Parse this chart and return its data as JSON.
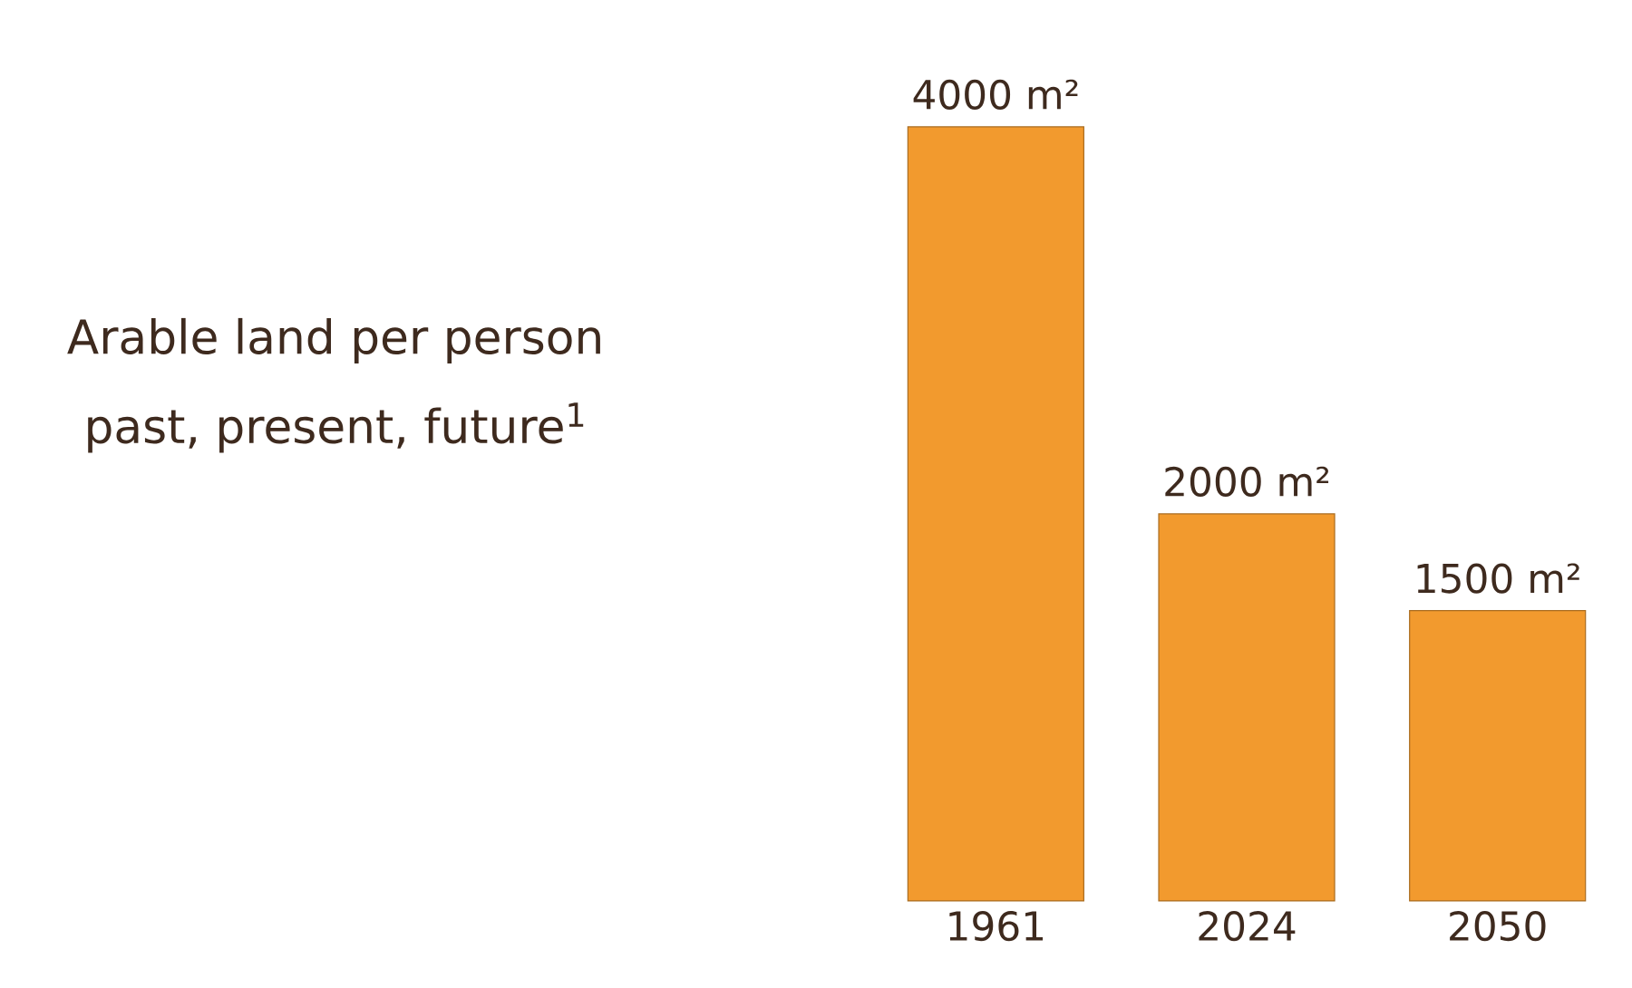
{
  "chart_data": {
    "type": "bar",
    "title": "Arable land per person",
    "subtitle": "past, present, future$^{1}$",
    "categories": [
      "1961",
      "2024",
      "2050"
    ],
    "values": [
      4000,
      2000,
      1500
    ],
    "value_labels": [
      "4000 m²",
      "2000 m²",
      "1500 m²"
    ],
    "color": "#f29a2e"
  }
}
